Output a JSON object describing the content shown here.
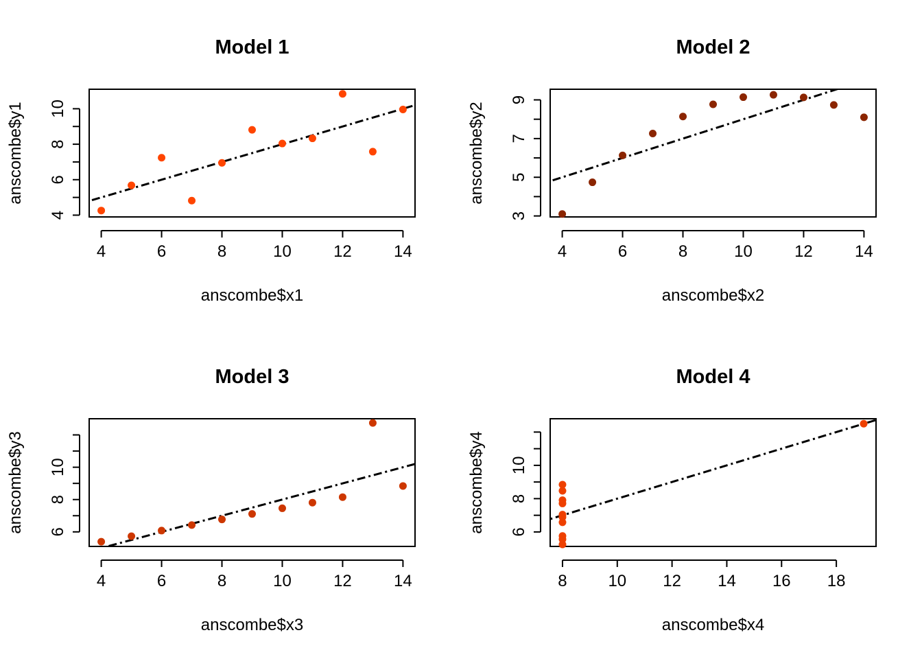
{
  "chart_data": [
    {
      "type": "scatter",
      "title": "Model 1",
      "xlabel": "anscombe$x1",
      "ylabel": "anscombe$y1",
      "xticks": [
        4,
        6,
        8,
        10,
        12,
        14
      ],
      "yticks": [
        4,
        6,
        8,
        10
      ],
      "xlim": [
        3.6,
        14.4
      ],
      "ylim": [
        3.9,
        11.1
      ],
      "point_color": "#FF4500",
      "x": [
        10,
        8,
        13,
        9,
        11,
        14,
        6,
        4,
        12,
        7,
        5
      ],
      "y": [
        8.04,
        6.95,
        7.58,
        8.81,
        8.33,
        9.96,
        7.24,
        4.26,
        10.84,
        4.82,
        5.68
      ],
      "fit": {
        "intercept": 3.0,
        "slope": 0.5
      }
    },
    {
      "type": "scatter",
      "title": "Model 2",
      "xlabel": "anscombe$x2",
      "ylabel": "anscombe$y2",
      "xticks": [
        4,
        6,
        8,
        10,
        12,
        14
      ],
      "yticks": [
        3,
        5,
        7,
        9
      ],
      "xlim": [
        3.6,
        14.4
      ],
      "ylim": [
        2.95,
        9.55
      ],
      "point_color": "#8B2500",
      "x": [
        10,
        8,
        13,
        9,
        11,
        14,
        6,
        4,
        12,
        7,
        5
      ],
      "y": [
        9.14,
        8.14,
        8.74,
        8.77,
        9.26,
        8.1,
        6.13,
        3.1,
        9.13,
        7.26,
        4.74
      ],
      "fit": {
        "intercept": 3.0,
        "slope": 0.5
      }
    },
    {
      "type": "scatter",
      "title": "Model 3",
      "xlabel": "anscombe$x3",
      "ylabel": "anscombe$y3",
      "xticks": [
        4,
        6,
        8,
        10,
        12,
        14
      ],
      "yticks": [
        6,
        8,
        10
      ],
      "ytick_marks": [
        6,
        8,
        10,
        12
      ],
      "xlim": [
        3.6,
        14.4
      ],
      "ylim": [
        5.1,
        13.0
      ],
      "point_color": "#CD3700",
      "x": [
        10,
        8,
        13,
        9,
        11,
        14,
        6,
        4,
        12,
        7,
        5
      ],
      "y": [
        7.46,
        6.77,
        12.74,
        7.11,
        7.81,
        8.84,
        6.08,
        5.39,
        8.15,
        6.42,
        5.73
      ],
      "fit": {
        "intercept": 3.0,
        "slope": 0.5
      }
    },
    {
      "type": "scatter",
      "title": "Model 4",
      "xlabel": "anscombe$x4",
      "ylabel": "anscombe$y4",
      "xticks": [
        8,
        10,
        12,
        14,
        16,
        18
      ],
      "yticks": [
        6,
        8,
        10
      ],
      "ytick_marks": [
        6,
        8,
        10,
        12
      ],
      "xlim": [
        7.55,
        19.45
      ],
      "ylim": [
        5.13,
        12.8
      ],
      "point_color": "#EE4000",
      "x": [
        8,
        8,
        8,
        8,
        8,
        8,
        8,
        19,
        8,
        8,
        8
      ],
      "y": [
        6.58,
        5.76,
        7.71,
        8.84,
        8.47,
        7.04,
        5.25,
        12.5,
        5.56,
        7.91,
        6.89
      ],
      "fit": {
        "intercept": 3.0,
        "slope": 0.5
      }
    }
  ]
}
